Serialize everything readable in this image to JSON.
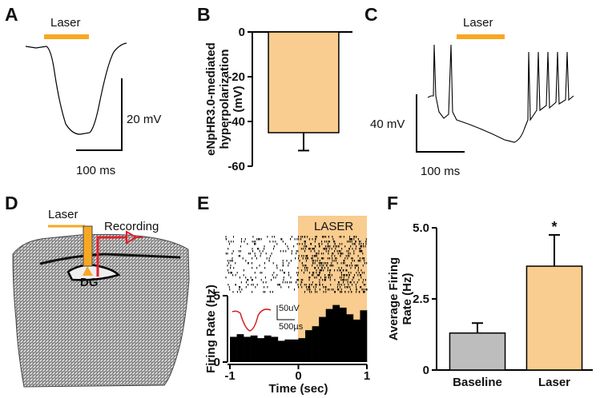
{
  "panels": {
    "letters": [
      "A",
      "B",
      "C",
      "D",
      "E",
      "F"
    ],
    "A": {
      "stimulus": "Laser",
      "scale_y": "20 mV",
      "scale_x": "100 ms"
    },
    "C": {
      "stimulus": "Laser",
      "scale_y": "40 mV",
      "scale_x": "100 ms"
    },
    "D": {
      "laser": "Laser",
      "recording": "Recording",
      "region": "DG"
    },
    "E": {
      "stimulus": "LASER",
      "scale_y": "50uV",
      "scale_x": "500µs"
    }
  },
  "chart_data": [
    {
      "type": "bar",
      "ylabel": [
        "eNpHR3.0-mediated",
        "hyperpolarization",
        "(mV)"
      ],
      "categories": [
        null
      ],
      "values": [
        -45
      ],
      "errors": [
        8
      ],
      "color": "#f9cc8f",
      "ylim": [
        -60,
        0
      ],
      "yticks": [
        0,
        -20,
        -40,
        -60
      ]
    },
    {
      "type": "histogram",
      "ylabel": "Firing Rate (Hz)",
      "xlabel": "Time (sec)",
      "bins": [
        -1,
        -0.9,
        -0.8,
        -0.7,
        -0.6,
        -0.5,
        -0.4,
        -0.3,
        -0.2,
        -0.1,
        0,
        0.1,
        0.2,
        0.3,
        0.4,
        0.5,
        0.6,
        0.7,
        0.8,
        0.9,
        1
      ],
      "values": [
        1.9,
        2.1,
        1.9,
        2.0,
        1.8,
        2.0,
        1.9,
        1.6,
        1.7,
        1.7,
        1.8,
        2.4,
        2.7,
        3.4,
        4.0,
        4.3,
        4.1,
        3.6,
        3.2,
        3.9
      ],
      "color": "#000000",
      "xlim": [
        -1,
        1
      ],
      "xticks": [
        -1,
        0,
        1
      ],
      "ylim": [
        0,
        5
      ],
      "yticks": [
        0,
        5
      ]
    },
    {
      "type": "bar",
      "ylabel": [
        "Average Firing",
        "Rate (Hz)"
      ],
      "categories": [
        "Baseline",
        "Laser"
      ],
      "values": [
        1.3,
        3.65
      ],
      "errors": [
        0.35,
        1.1
      ],
      "colors": [
        "#bdbdbd",
        "#f9cc8f"
      ],
      "annotation": "*",
      "ylim": [
        0,
        5
      ],
      "yticks": [
        0,
        2.5,
        {
          "value": 5,
          "label": "5.0"
        }
      ]
    }
  ]
}
